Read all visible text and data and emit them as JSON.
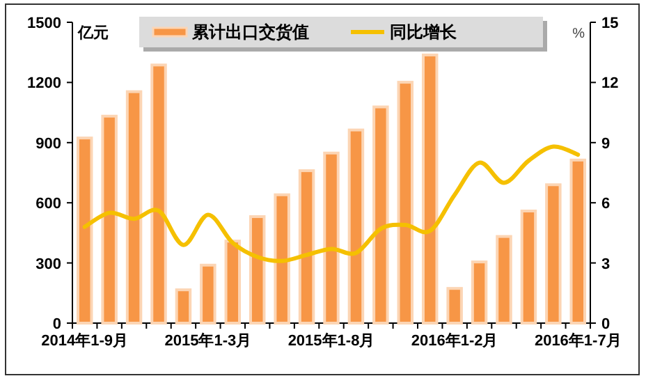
{
  "chart_data": {
    "type": "bar",
    "categories": [
      "2014年1-9月",
      null,
      null,
      null,
      null,
      "2015年1-3月",
      null,
      null,
      null,
      null,
      "2015年1-8月",
      null,
      null,
      null,
      null,
      "2016年1-2月",
      null,
      null,
      null,
      null,
      "2016年1-7月"
    ],
    "ylabel": "亿元",
    "y2label": "%",
    "series": [
      {
        "name": "累计出口交货值",
        "color": "#f79646",
        "values": [
          923,
          1032,
          1154,
          1287,
          166,
          289,
          409,
          531,
          640,
          760,
          848,
          963,
          1078,
          1201,
          1337,
          173,
          305,
          432,
          559,
          690,
          813
        ]
      },
      {
        "name": "同比增长",
        "type": "line",
        "axis": "y2",
        "color": "#f5c000",
        "values": [
          4.8,
          5.5,
          5.2,
          5.6,
          3.9,
          5.4,
          4.0,
          3.3,
          3.1,
          3.4,
          3.7,
          3.5,
          4.7,
          4.9,
          4.6,
          6.4,
          8.0,
          7.0,
          8.1,
          8.8,
          8.4
        ]
      }
    ],
    "ylim": [
      0,
      1500
    ],
    "yticks": [
      0,
      300,
      600,
      900,
      1200,
      1500
    ],
    "y2lim": [
      0,
      15
    ],
    "y2ticks": [
      0,
      3,
      6,
      9,
      12,
      15
    ],
    "legend": "top",
    "grid": false
  }
}
